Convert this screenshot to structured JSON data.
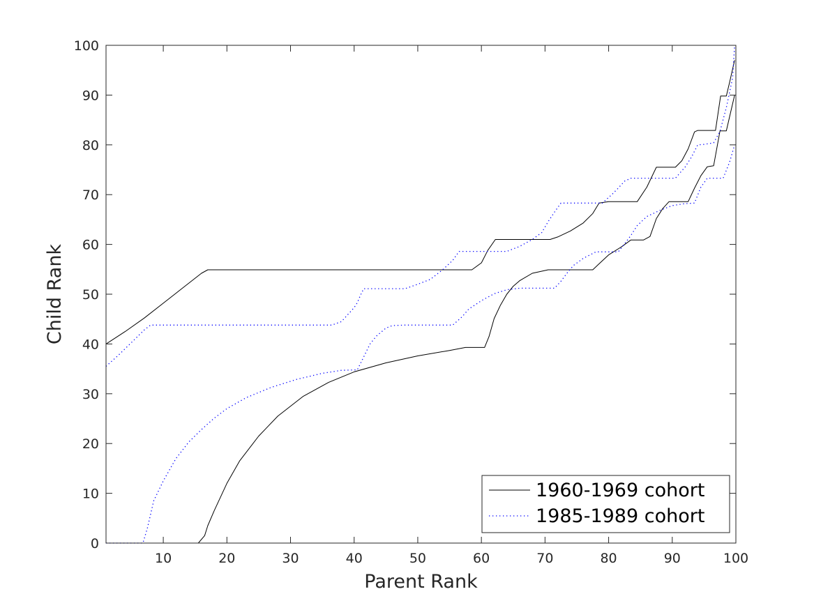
{
  "chart_data": {
    "type": "line",
    "xlabel": "Parent Rank",
    "ylabel": "Child Rank",
    "xlim": [
      1,
      100
    ],
    "ylim": [
      0,
      100
    ],
    "xticks": [
      10,
      20,
      30,
      40,
      50,
      60,
      70,
      80,
      90,
      100
    ],
    "yticks": [
      0,
      10,
      20,
      30,
      40,
      50,
      60,
      70,
      80,
      90,
      100
    ],
    "grid": false,
    "legend_position": "bottom-right",
    "colors": {
      "1960-1969 cohort": "#000000",
      "1985-1989 cohort": "#0000ff"
    },
    "series": [
      {
        "name": "1960-1969 cohort",
        "style": "solid",
        "lines": [
          {
            "x": [
              1,
              4,
              7,
              10,
              13,
              16,
              17,
              18,
              30,
              45,
              58.5,
              60,
              61,
              62.2,
              64,
              66,
              68,
              70.8,
              72,
              74,
              76,
              77.5,
              78.5,
              80,
              84.5,
              86,
              87.5,
              89.5,
              90.5,
              91.5,
              92.5,
              93.5,
              94,
              96.8,
              97.6,
              98.5,
              99,
              99.8
            ],
            "y": [
              40,
              42.5,
              45.2,
              48.2,
              51.2,
              54.2,
              54.9,
              54.9,
              54.9,
              54.9,
              54.9,
              56.3,
              58.8,
              61,
              61,
              61,
              61,
              61,
              61.5,
              62.7,
              64.3,
              66.2,
              68.3,
              68.6,
              68.6,
              71.5,
              75.5,
              75.5,
              75.5,
              76.8,
              79.2,
              82.6,
              82.9,
              82.9,
              89.8,
              89.8,
              92.5,
              97
            ]
          },
          {
            "x": [
              1,
              10,
              15.5,
              16.5,
              17,
              18,
              20,
              22,
              25,
              28,
              32,
              36,
              40,
              45,
              50,
              55,
              57.5,
              60.5,
              61.2,
              62,
              63,
              64,
              65,
              66,
              68,
              70.5,
              72,
              77.5,
              78.5,
              80,
              82,
              83.5,
              85.5,
              86.5,
              87.5,
              88.5,
              89.5,
              90.5,
              92.5,
              93.5,
              94.5,
              95.5,
              96.5,
              97.5,
              98.5,
              99.8
            ],
            "y": [
              0,
              0,
              0,
              1.5,
              3.5,
              6.5,
              12,
              16.5,
              21.5,
              25.5,
              29.5,
              32.3,
              34.4,
              36.2,
              37.6,
              38.7,
              39.3,
              39.3,
              41.5,
              45.1,
              47.8,
              50,
              51.6,
              52.7,
              54.2,
              54.9,
              54.9,
              54.9,
              56.1,
              57.9,
              59.5,
              60.9,
              60.9,
              61.6,
              65.2,
              67.2,
              68.6,
              68.6,
              68.6,
              71.3,
              73.8,
              75.6,
              75.8,
              82.8,
              82.8,
              90
            ]
          }
        ]
      },
      {
        "name": "1985-1989 cohort",
        "style": "dotted",
        "lines": [
          {
            "x": [
              1,
              3,
              5,
              7,
              8,
              10,
              20,
              30,
              36.5,
              38,
              39,
              40,
              40.5,
              41,
              41.5,
              42.5,
              46,
              48,
              50,
              52,
              54,
              55.5,
              56.5,
              58.5,
              60,
              62,
              64,
              66,
              68,
              69.5,
              70.5,
              71.5,
              72.5,
              76,
              78,
              79,
              80.5,
              81.5,
              82.5,
              83.5,
              85,
              88,
              89.5,
              90.5,
              92,
              93,
              94,
              95,
              96.5,
              97.5,
              98.5,
              99.5,
              99.8
            ],
            "y": [
              35.5,
              37.8,
              40.3,
              42.8,
              43.8,
              43.8,
              43.8,
              43.8,
              43.8,
              44.5,
              45.9,
              47.3,
              48.3,
              49.8,
              51.1,
              51.1,
              51.1,
              51.1,
              52,
              53,
              55,
              56.8,
              58.6,
              58.6,
              58.6,
              58.6,
              58.6,
              59.6,
              61,
              62.4,
              64.6,
              66.5,
              68.3,
              68.3,
              68.3,
              68.3,
              70,
              71.3,
              72.7,
              73.3,
              73.3,
              73.3,
              73.3,
              73.3,
              75.5,
              77.5,
              80,
              80.1,
              80.4,
              82.7,
              87.5,
              93.5,
              100
            ]
          },
          {
            "x": [
              1,
              5,
              6.8,
              7.5,
              8.5,
              10,
              12,
              14,
              16,
              18,
              20,
              23,
              27,
              31,
              35,
              38,
              40.5,
              41.5,
              42.5,
              43.5,
              45,
              46,
              48,
              52,
              55.5,
              57,
              58,
              60,
              62,
              64,
              66,
              70,
              71.5,
              72.5,
              73.5,
              74.5,
              76,
              78,
              80,
              81.5,
              82.5,
              83.5,
              84.5,
              86,
              88,
              90,
              92,
              93.5,
              94.5,
              95.5,
              97.5,
              98,
              99,
              99.8
            ],
            "y": [
              0,
              0,
              0,
              3,
              8.5,
              12.5,
              17,
              20.3,
              22.8,
              25.1,
              27,
              29.2,
              31.3,
              32.9,
              34.1,
              34.7,
              34.8,
              37.4,
              40,
              41.6,
              43.2,
              43.7,
              43.8,
              43.8,
              43.8,
              45.5,
              47,
              48.7,
              50.1,
              50.9,
              51.2,
              51.2,
              51.2,
              52.6,
              54.3,
              55.8,
              57.2,
              58.5,
              58.5,
              58.5,
              60.1,
              61.8,
              63.8,
              65.6,
              66.8,
              67.8,
              68.2,
              68.3,
              71.5,
              73.3,
              73.3,
              73.3,
              76.5,
              80
            ]
          }
        ]
      }
    ]
  }
}
